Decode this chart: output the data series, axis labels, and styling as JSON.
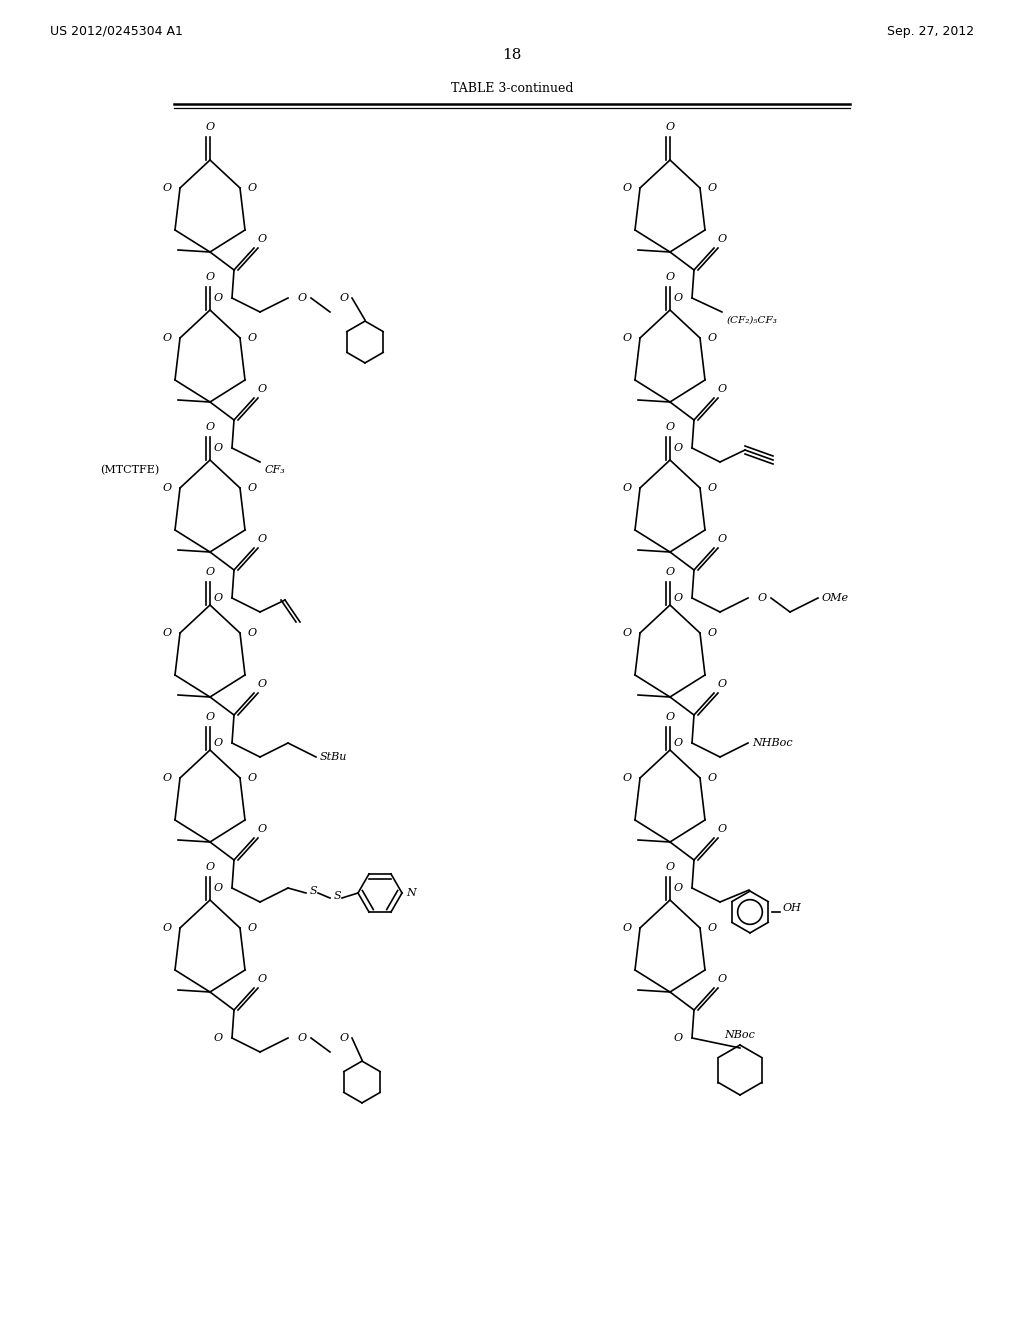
{
  "header_left": "US 2012/0245304 A1",
  "header_right": "Sep. 27, 2012",
  "page_number": "18",
  "title": "TABLE 3-continued",
  "background_color": "#ffffff",
  "text_color": "#000000",
  "line_color": "#000000"
}
